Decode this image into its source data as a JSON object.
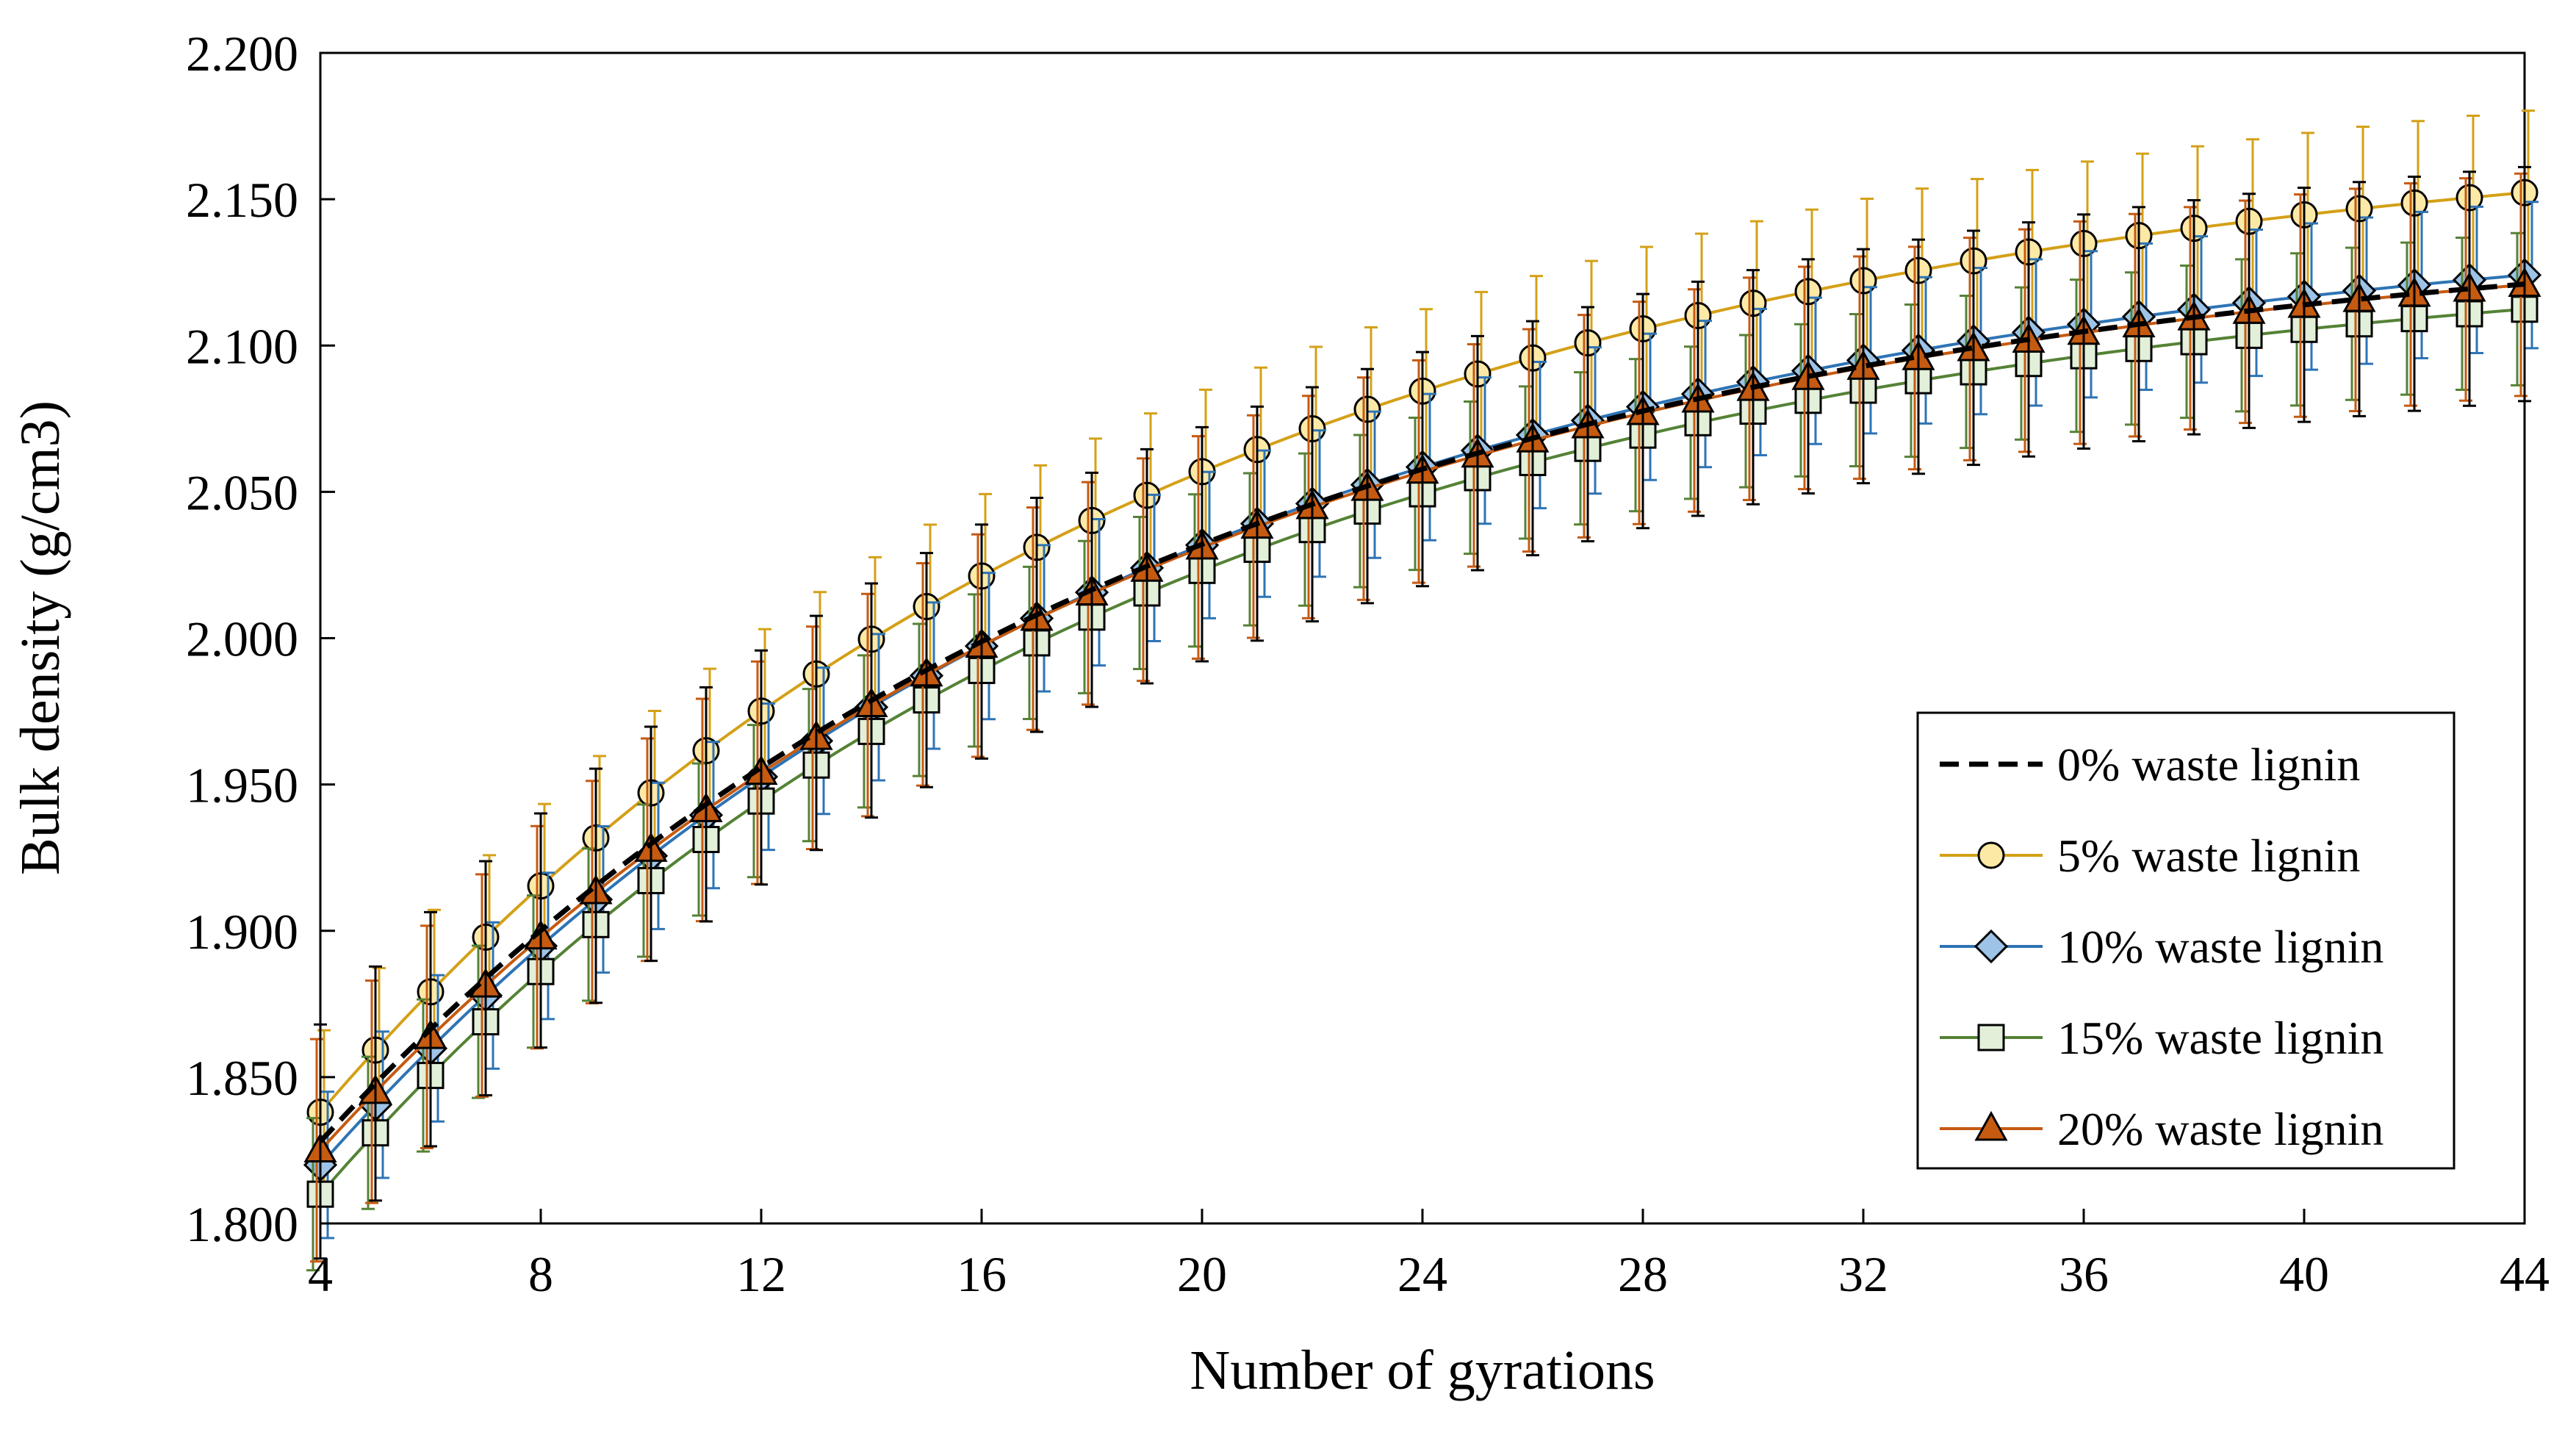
{
  "chart_data": {
    "type": "line",
    "title": "",
    "xlabel": "Number of gyrations",
    "ylabel": "Bulk density (g/cm3)",
    "xlim": [
      4,
      44
    ],
    "ylim": [
      1.8,
      2.2
    ],
    "xticks": [
      "4",
      "8",
      "12",
      "16",
      "20",
      "24",
      "28",
      "32",
      "36",
      "40",
      "44"
    ],
    "yticks": [
      "1.800",
      "1.850",
      "1.900",
      "1.950",
      "2.000",
      "2.050",
      "2.100",
      "2.150",
      "2.200"
    ],
    "grid": false,
    "legend_position": "bottom-right",
    "x": [
      4,
      44
    ],
    "model": "y = a + b * (1 - exp(-(x - 4) / tau)), sampled at every integer gyration 4..44",
    "series": [
      {
        "name": "0% waste lignin",
        "color": "#000000",
        "marker": "none",
        "line_style": "dashed",
        "a": 1.828,
        "b": 0.317,
        "tau": 15.5,
        "error": 0.04
      },
      {
        "name": "5% waste lignin",
        "color": "#D4A017",
        "marker": "circle",
        "marker_fill": "#FDE9A6",
        "line_style": "solid",
        "a": 1.838,
        "b": 0.34,
        "tau": 15.5,
        "error": 0.028
      },
      {
        "name": "10% waste lignin",
        "color": "#2E74B5",
        "marker": "diamond",
        "marker_fill": "#9DC3E6",
        "line_style": "solid",
        "a": 1.82,
        "b": 0.329,
        "tau": 15.5,
        "error": 0.025
      },
      {
        "name": "15% waste lignin",
        "color": "#548235",
        "marker": "square",
        "marker_fill": "#E2F0D9",
        "line_style": "solid",
        "a": 1.81,
        "b": 0.325,
        "tau": 15.0,
        "error": 0.026
      },
      {
        "name": "20% waste lignin",
        "color": "#C55A11",
        "marker": "triangle",
        "marker_fill": "#C55A11",
        "line_style": "solid",
        "a": 1.825,
        "b": 0.32,
        "tau": 15.5,
        "error": 0.038
      }
    ]
  }
}
